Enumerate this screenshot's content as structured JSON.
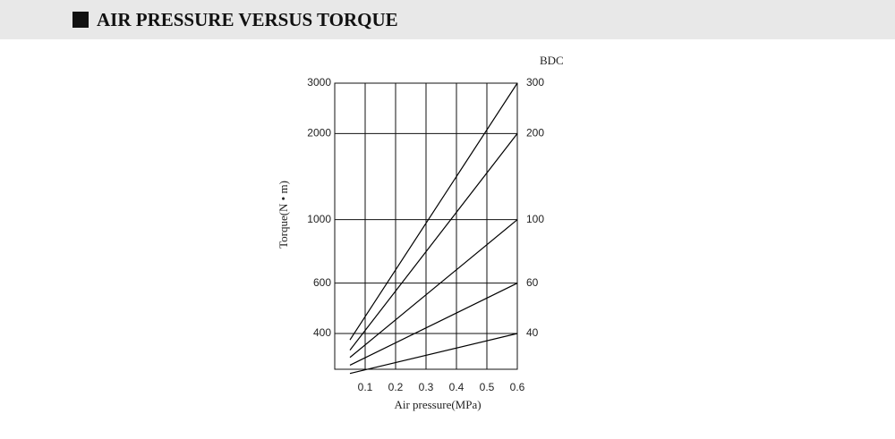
{
  "chart_data": {
    "type": "line",
    "title": "AIR PRESSURE VERSUS TORQUE",
    "x_label": "Air pressure(MPa)",
    "y_label": "Torque(N • m)",
    "y2_title": "BDC",
    "x": [
      0.05,
      0.6
    ],
    "series": [
      {
        "name": "300",
        "color": "#000000",
        "values": [
          380,
          3000
        ]
      },
      {
        "name": "200",
        "color": "#000000",
        "values": [
          350,
          2000
        ]
      },
      {
        "name": "100",
        "color": "#000000",
        "values": [
          330,
          1000
        ]
      },
      {
        "name": "60",
        "color": "#000000",
        "values": [
          310,
          600
        ]
      },
      {
        "name": "40",
        "color": "#000000",
        "values": [
          290,
          400
        ]
      }
    ],
    "xlim": [
      0,
      0.6
    ],
    "xticks": [
      0.1,
      0.2,
      0.3,
      0.4,
      0.5,
      0.6
    ],
    "ylim": [
      300,
      3000
    ],
    "yticks": [
      400,
      600,
      1000,
      2000,
      3000
    ],
    "ylog": true,
    "grid": true
  }
}
